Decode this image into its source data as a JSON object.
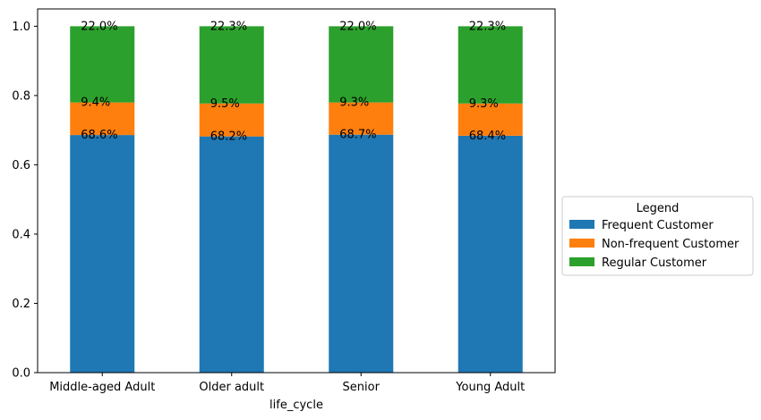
{
  "chart_data": {
    "type": "bar",
    "stacked": true,
    "title": "",
    "xlabel": "life_cycle",
    "ylabel": "",
    "ylim": [
      0,
      1.05
    ],
    "yticks": [
      0.0,
      0.2,
      0.4,
      0.6,
      0.8,
      1.0
    ],
    "ytick_labels": [
      "0.0",
      "0.2",
      "0.4",
      "0.6",
      "0.8",
      "1.0"
    ],
    "categories": [
      "Middle-aged Adult",
      "Older adult",
      "Senior",
      "Young Adult"
    ],
    "series": [
      {
        "name": "Frequent Customer",
        "color": "#1f77b4",
        "values": [
          0.686,
          0.682,
          0.687,
          0.684
        ],
        "labels": [
          "68.6%",
          "68.2%",
          "68.7%",
          "68.4%"
        ]
      },
      {
        "name": "Non-frequent Customer",
        "color": "#ff7f0e",
        "values": [
          0.094,
          0.095,
          0.093,
          0.093
        ],
        "labels": [
          "9.4%",
          "9.5%",
          "9.3%",
          "9.3%"
        ]
      },
      {
        "name": "Regular Customer",
        "color": "#2ca02c",
        "values": [
          0.22,
          0.223,
          0.22,
          0.223
        ],
        "labels": [
          "22.0%",
          "22.3%",
          "22.0%",
          "22.3%"
        ]
      }
    ],
    "legend": {
      "title": "Legend",
      "position": "center-right, outside plot"
    },
    "grid": false
  }
}
